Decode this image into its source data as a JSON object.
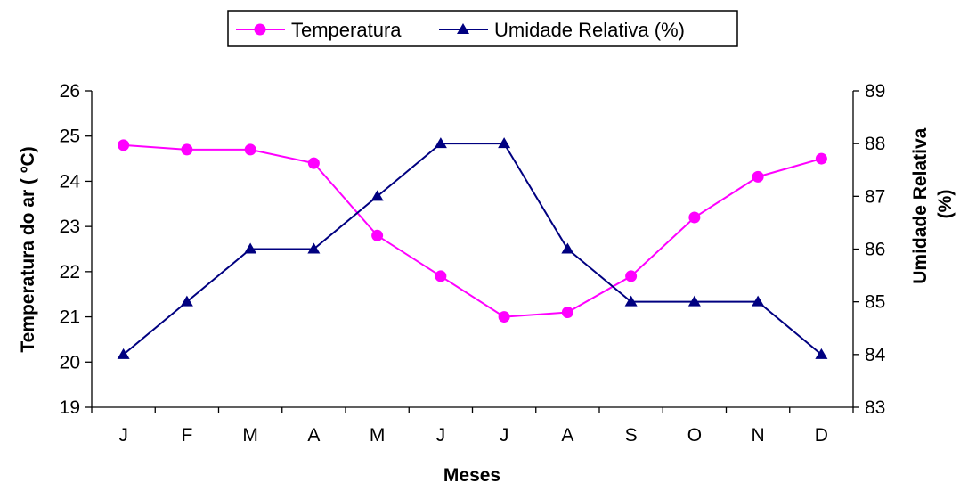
{
  "chart_data": {
    "type": "line",
    "categories": [
      "J",
      "F",
      "M",
      "A",
      "M",
      "J",
      "J",
      "A",
      "S",
      "O",
      "N",
      "D"
    ],
    "series": [
      {
        "name": "Temperatura",
        "axis": "left",
        "color": "#FF00FF",
        "marker": "circle",
        "values": [
          24.8,
          24.7,
          24.7,
          24.4,
          22.8,
          21.9,
          21.0,
          21.1,
          21.9,
          23.2,
          24.1,
          24.5
        ]
      },
      {
        "name": "Umidade Relativa (%)",
        "axis": "right",
        "color": "#000080",
        "marker": "triangle",
        "values": [
          84,
          85,
          86,
          86,
          87,
          88,
          88,
          86,
          85,
          85,
          85,
          84
        ]
      }
    ],
    "xlabel": "Meses",
    "ylabel": "Temperatura do ar ( ºC)",
    "ylabel_right": "Umidade Relativa (%)",
    "ylim": [
      19,
      26
    ],
    "ylim_right": [
      83,
      89
    ],
    "yticks": [
      19,
      20,
      21,
      22,
      23,
      24,
      25,
      26
    ],
    "yticks_right": [
      83,
      84,
      85,
      86,
      87,
      88,
      89
    ],
    "grid": false,
    "legend": "top-center"
  }
}
